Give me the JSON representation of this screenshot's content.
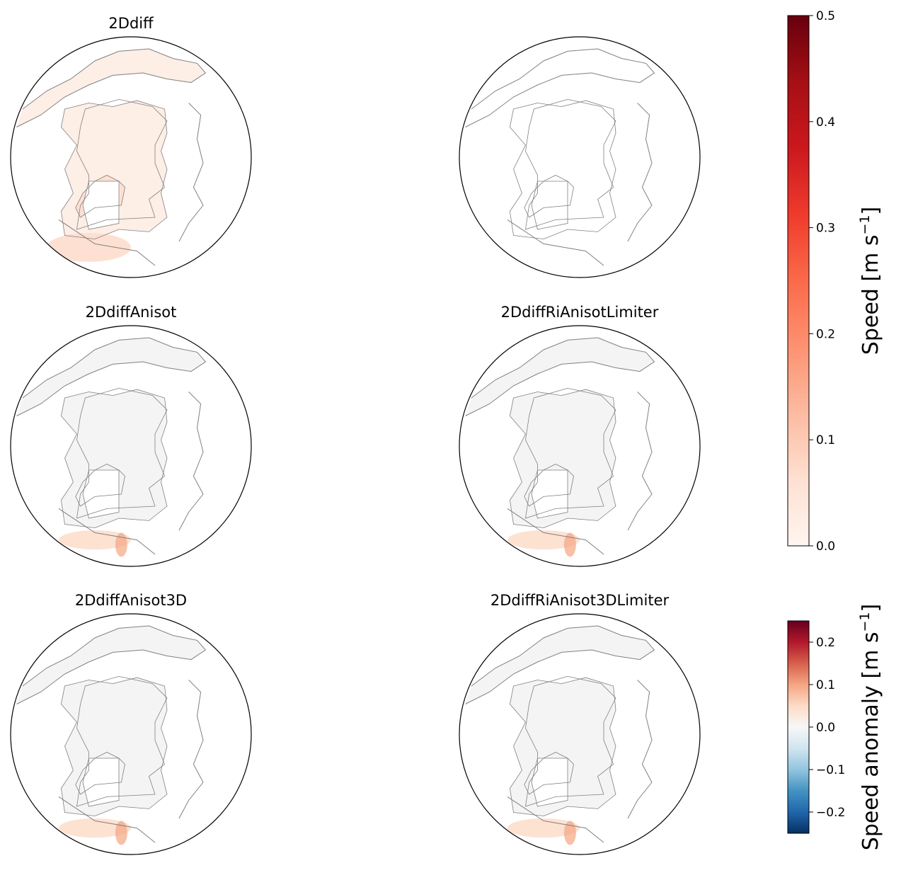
{
  "chart_data": [
    {
      "type": "map",
      "panels": [
        {
          "title": "2Ddiff",
          "field": "speed",
          "shading": "positive-speed"
        },
        {
          "title": "",
          "field": "speed",
          "shading": "none"
        },
        {
          "title": "2DdiffAnisot",
          "field": "speed anomaly",
          "shading": "anomaly"
        },
        {
          "title": "2DdiffRiAnisotLimiter",
          "field": "speed anomaly",
          "shading": "anomaly"
        },
        {
          "title": "2DdiffAnisot3D",
          "field": "speed anomaly",
          "shading": "anomaly"
        },
        {
          "title": "2DdiffRiAnisot3DLimiter",
          "field": "speed anomaly",
          "shading": "anomaly"
        }
      ]
    },
    {
      "type": "colorbar",
      "label": "Speed [m s",
      "label_sup": "−1",
      "label_end": "]",
      "colormap": "Reds",
      "range": [
        0.0,
        0.5
      ],
      "ticks": [
        {
          "value": 0.0,
          "label": "0.0"
        },
        {
          "value": 0.1,
          "label": "0.1"
        },
        {
          "value": 0.2,
          "label": "0.2"
        },
        {
          "value": 0.3,
          "label": "0.3"
        },
        {
          "value": 0.4,
          "label": "0.4"
        },
        {
          "value": 0.5,
          "label": "0.5"
        }
      ]
    },
    {
      "type": "colorbar",
      "label": "Speed anomaly [m s",
      "label_sup": "−1",
      "label_end": "]",
      "colormap": "RdBu_r",
      "range": [
        -0.25,
        0.25
      ],
      "ticks": [
        {
          "value": -0.2,
          "label": "−0.2"
        },
        {
          "value": -0.1,
          "label": "−0.1"
        },
        {
          "value": 0.0,
          "label": "0.0"
        },
        {
          "value": 0.1,
          "label": "0.1"
        },
        {
          "value": 0.2,
          "label": "0.2"
        }
      ]
    }
  ],
  "colors": {
    "reds": [
      "#fff5f0",
      "#fee0d2",
      "#fcbba1",
      "#fc9272",
      "#fb6a4a",
      "#ef3b2c",
      "#cb181d",
      "#a50f15",
      "#67000d"
    ],
    "rdbu": [
      "#053061",
      "#2166ac",
      "#4393c3",
      "#92c5de",
      "#d1e5f0",
      "#f7f7f7",
      "#fddbc7",
      "#f4a582",
      "#d6604d",
      "#b2182b",
      "#67001f"
    ],
    "coast": "#808080",
    "land": "#ffffff",
    "anomaly_bg": "#f4f4f4",
    "speed_bg": "#fdeee6"
  }
}
